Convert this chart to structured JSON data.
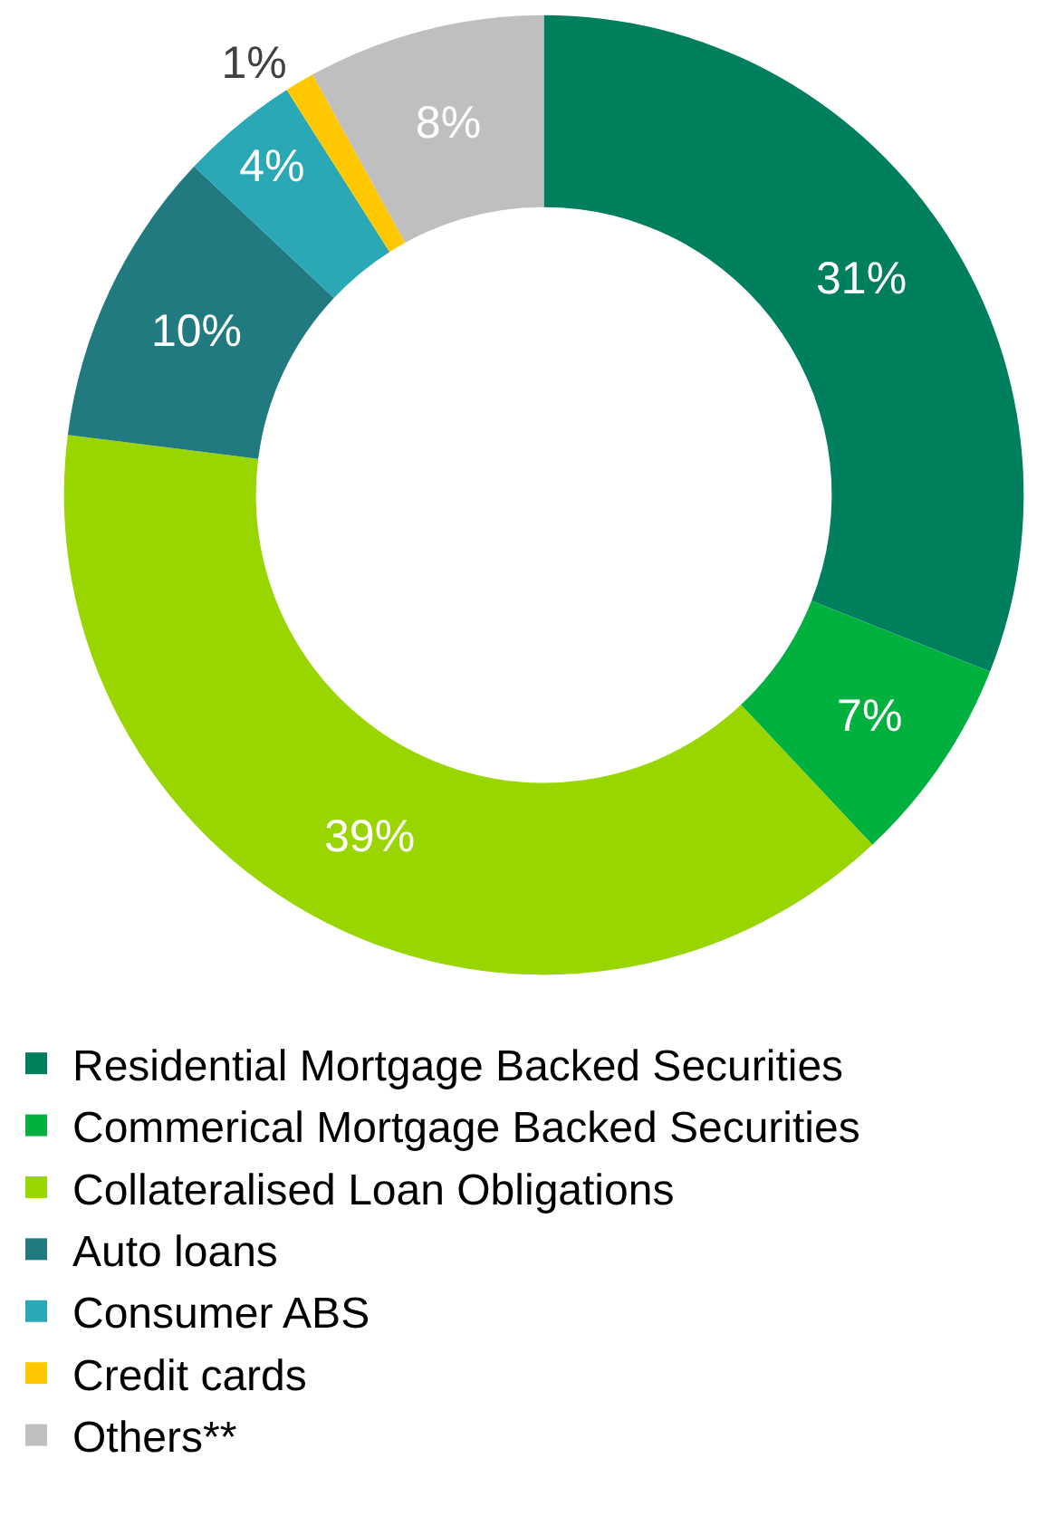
{
  "chart_data": {
    "type": "donut",
    "categories": [
      "Residential Mortgage Backed Securities",
      "Commerical Mortgage Backed Securities",
      "Collateralised Loan Obligations",
      "Auto loans",
      "Consumer ABS",
      "Credit cards",
      "Others**"
    ],
    "values": [
      31,
      7,
      39,
      10,
      4,
      1,
      8
    ],
    "colors": [
      "#007f5f",
      "#00b140",
      "#99d600",
      "#217a80",
      "#2aa8b5",
      "#ffc800",
      "#bfbfbf"
    ],
    "value_labels": [
      "31%",
      "7%",
      "39%",
      "10%",
      "4%",
      "1%",
      "8%"
    ],
    "legend": "bottom"
  }
}
